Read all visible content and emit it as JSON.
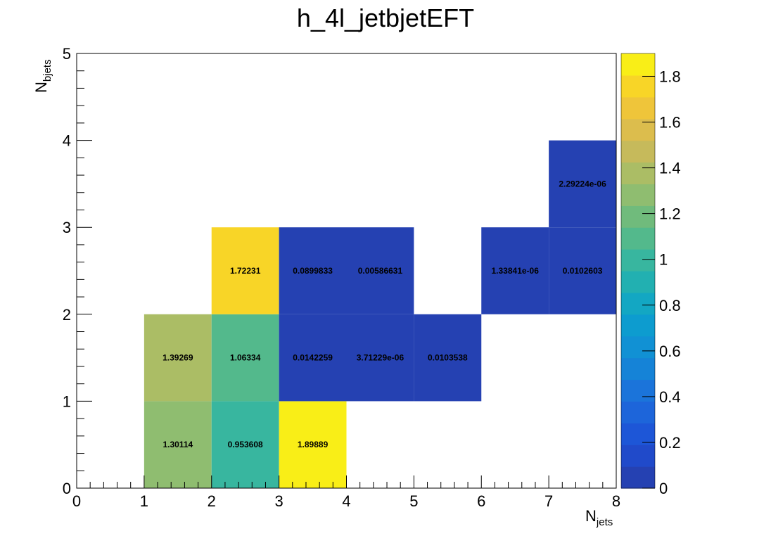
{
  "chart_data": {
    "type": "heatmap",
    "title": "h_4l_jetbjetEFT",
    "xlabel": {
      "main": "N",
      "sub": "jets"
    },
    "ylabel": {
      "main": "N",
      "sub": "bjets"
    },
    "xlim": [
      0,
      8
    ],
    "ylim": [
      0,
      5
    ],
    "x_ticks": [
      "0",
      "1",
      "2",
      "3",
      "4",
      "5",
      "6",
      "7",
      "8"
    ],
    "y_ticks": [
      "0",
      "1",
      "2",
      "3",
      "4",
      "5"
    ],
    "colorbar": {
      "range": [
        0,
        1.9
      ],
      "ticks": [
        "0",
        "0.2",
        "0.4",
        "0.6",
        "0.8",
        "1",
        "1.2",
        "1.4",
        "1.6",
        "1.8"
      ],
      "levels": 20
    },
    "cells": [
      {
        "x": [
          1,
          2
        ],
        "y": [
          0,
          1
        ],
        "value": 1.30114,
        "label": "1.30114"
      },
      {
        "x": [
          2,
          3
        ],
        "y": [
          0,
          1
        ],
        "value": 0.953608,
        "label": "0.953608"
      },
      {
        "x": [
          3,
          4
        ],
        "y": [
          0,
          1
        ],
        "value": 1.89889,
        "label": "1.89889"
      },
      {
        "x": [
          1,
          2
        ],
        "y": [
          1,
          2
        ],
        "value": 1.39269,
        "label": "1.39269"
      },
      {
        "x": [
          2,
          3
        ],
        "y": [
          1,
          2
        ],
        "value": 1.06334,
        "label": "1.06334"
      },
      {
        "x": [
          3,
          4
        ],
        "y": [
          1,
          2
        ],
        "value": 0.0142259,
        "label": "0.0142259"
      },
      {
        "x": [
          4,
          5
        ],
        "y": [
          1,
          2
        ],
        "value": 3.71229e-06,
        "label": "3.71229e-06"
      },
      {
        "x": [
          5,
          6
        ],
        "y": [
          1,
          2
        ],
        "value": 0.0103538,
        "label": "0.0103538"
      },
      {
        "x": [
          2,
          3
        ],
        "y": [
          2,
          3
        ],
        "value": 1.72231,
        "label": "1.72231"
      },
      {
        "x": [
          3,
          4
        ],
        "y": [
          2,
          3
        ],
        "value": 0.0899833,
        "label": "0.0899833"
      },
      {
        "x": [
          4,
          5
        ],
        "y": [
          2,
          3
        ],
        "value": 0.00586631,
        "label": "0.00586631"
      },
      {
        "x": [
          6,
          7
        ],
        "y": [
          2,
          3
        ],
        "value": 1.33841e-06,
        "label": "1.33841e-06"
      },
      {
        "x": [
          7,
          8
        ],
        "y": [
          2,
          3
        ],
        "value": 0.0102603,
        "label": "0.0102603"
      },
      {
        "x": [
          7,
          8
        ],
        "y": [
          3,
          4
        ],
        "value": 2.29224e-06,
        "label": "2.29224e-06"
      }
    ]
  }
}
